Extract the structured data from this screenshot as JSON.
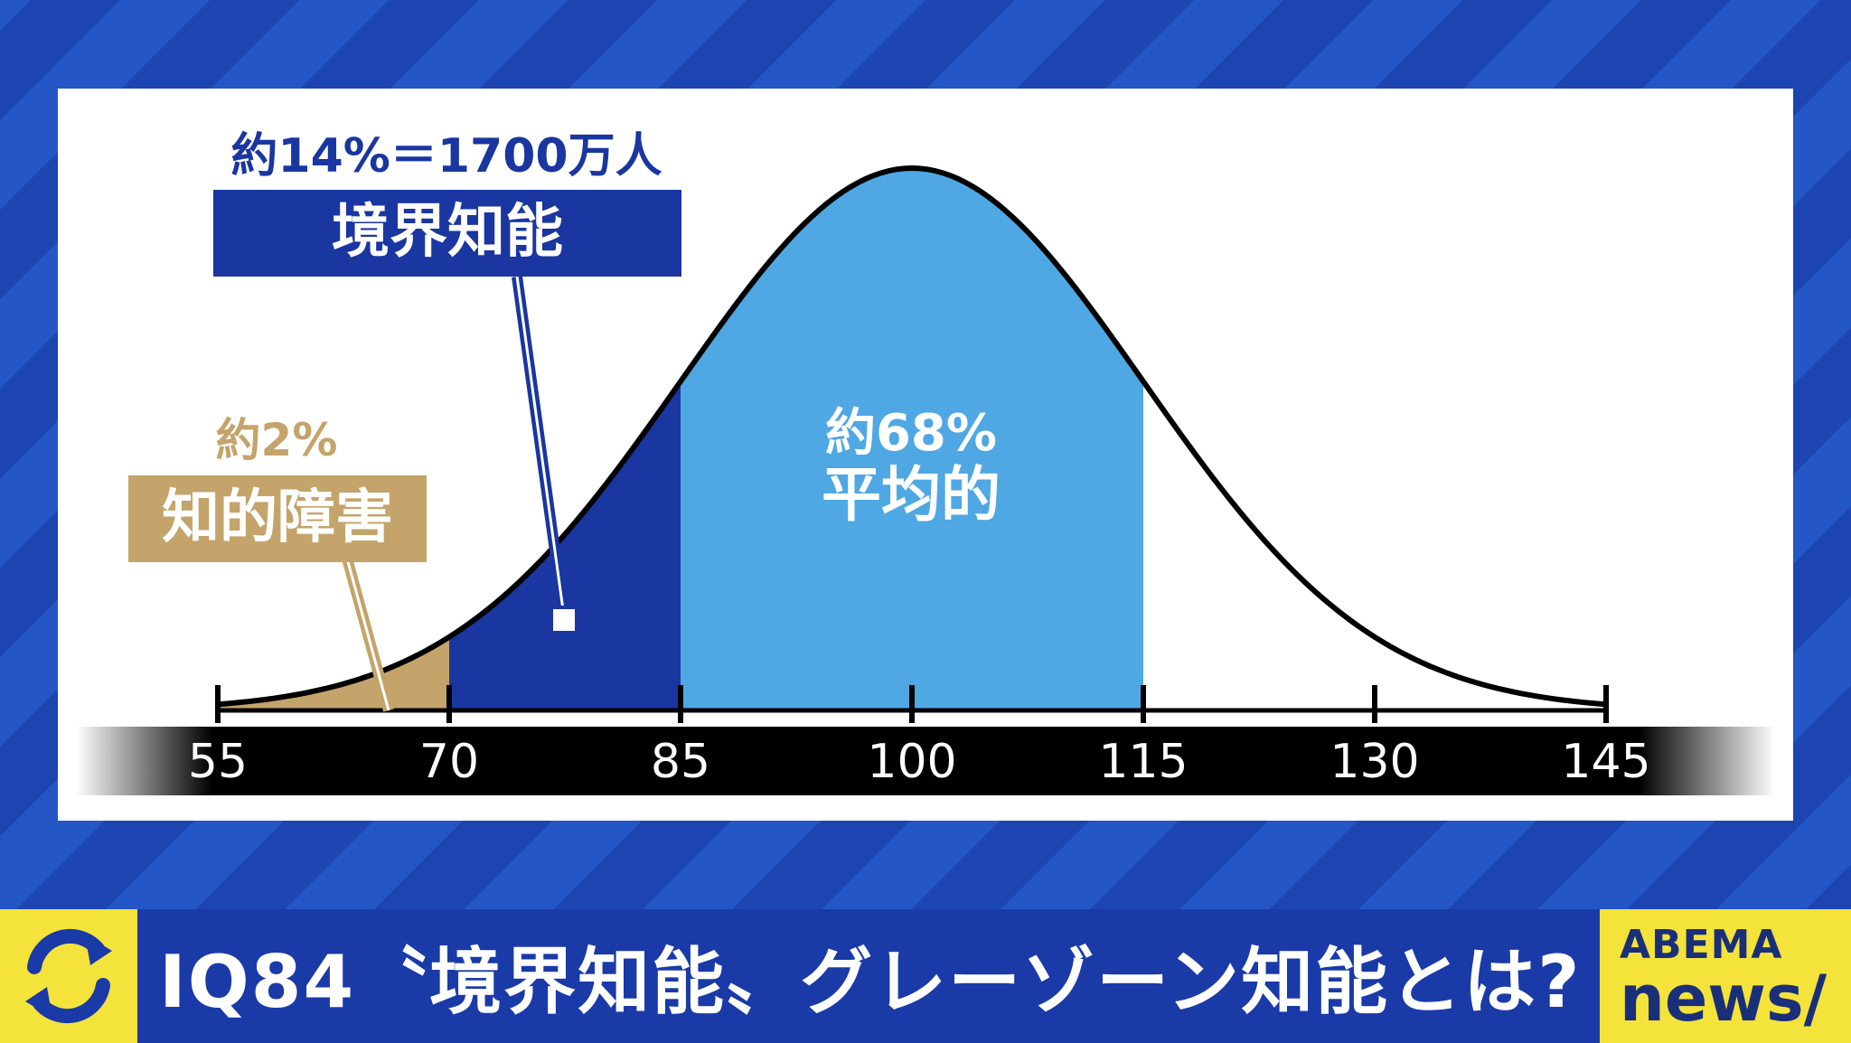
{
  "chart_data": {
    "type": "area",
    "distribution": "normal",
    "mean": 100,
    "sd": 15,
    "x_ticks": [
      "55",
      "70",
      "85",
      "100",
      "115",
      "130",
      "145"
    ],
    "xlim": [
      55,
      145
    ],
    "regions": [
      {
        "from": 55,
        "to": 70,
        "color": "#c4a46a",
        "pct_label": "約2%",
        "label": "知的障害"
      },
      {
        "from": 70,
        "to": 85,
        "color": "#1a36a0",
        "pct_label": "約14%＝1700万人",
        "label": "境界知能"
      },
      {
        "from": 85,
        "to": 115,
        "color": "#4fa8e4",
        "pct_label": "約68%",
        "label": "平均的"
      }
    ]
  },
  "headline": "IQ84〝境界知能〟グレーゾーン知能とは?",
  "logo": {
    "line1": "ABEMA",
    "line2": "news/"
  },
  "colors": {
    "brand_blue": "#1a3aa8",
    "accent_yellow": "#f4e33a",
    "gold": "#c4a46a",
    "light_blue": "#4fa8e4",
    "dark_blue": "#1a36a0"
  }
}
